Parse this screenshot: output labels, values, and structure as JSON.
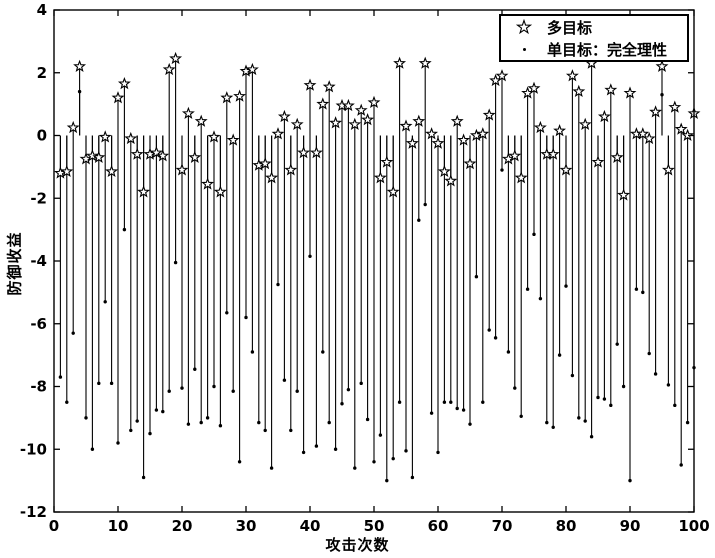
{
  "figure": {
    "xlabel": "攻击次数",
    "ylabel": "防御收益",
    "x_ticks": [
      0,
      10,
      20,
      30,
      40,
      50,
      60,
      70,
      80,
      90,
      100
    ],
    "y_ticks": [
      4,
      2,
      0,
      -2,
      -4,
      -6,
      -8,
      -10,
      -12
    ],
    "colors": {
      "stroke": "#000000",
      "background": "#ffffff"
    }
  },
  "chart_data": {
    "type": "stem",
    "title": "",
    "xlabel": "攻击次数",
    "ylabel": "防御收益",
    "xlim": [
      0,
      100
    ],
    "ylim": [
      -12,
      4
    ],
    "baseline": 0,
    "grid": false,
    "legend_position": "top-right",
    "x": [
      1,
      2,
      3,
      4,
      5,
      6,
      7,
      8,
      9,
      10,
      11,
      12,
      13,
      14,
      15,
      16,
      17,
      18,
      19,
      20,
      21,
      22,
      23,
      24,
      25,
      26,
      27,
      28,
      29,
      30,
      31,
      32,
      33,
      34,
      35,
      36,
      37,
      38,
      39,
      40,
      41,
      42,
      43,
      44,
      45,
      46,
      47,
      48,
      49,
      50,
      51,
      52,
      53,
      54,
      55,
      56,
      57,
      58,
      59,
      60,
      61,
      62,
      63,
      64,
      65,
      66,
      67,
      68,
      69,
      70,
      71,
      72,
      73,
      74,
      75,
      76,
      77,
      78,
      79,
      80,
      81,
      82,
      83,
      84,
      85,
      86,
      87,
      88,
      89,
      90,
      91,
      92,
      93,
      94,
      95,
      96,
      97,
      98,
      99,
      100
    ],
    "series": [
      {
        "name": "多目标",
        "marker": "pentagram",
        "values": [
          -1.2,
          -1.15,
          0.25,
          2.2,
          -0.75,
          -0.65,
          -0.7,
          -0.05,
          -1.15,
          1.2,
          1.65,
          -0.1,
          -0.6,
          -1.8,
          -0.6,
          -0.55,
          -0.65,
          2.1,
          2.45,
          -1.1,
          0.7,
          -0.7,
          0.45,
          -1.55,
          -0.05,
          -1.8,
          1.2,
          -0.15,
          1.25,
          2.05,
          2.1,
          -0.95,
          -0.9,
          -1.35,
          0.05,
          0.6,
          -1.1,
          0.35,
          -0.55,
          1.6,
          -0.55,
          1.0,
          1.55,
          0.4,
          0.95,
          0.95,
          0.35,
          0.8,
          0.5,
          1.05,
          -1.35,
          -0.85,
          -1.8,
          2.3,
          0.3,
          -0.25,
          0.45,
          2.3,
          0.05,
          -0.25,
          -1.15,
          -1.45,
          0.45,
          -0.15,
          -0.9,
          0.0,
          0.05,
          0.65,
          1.75,
          1.9,
          -0.75,
          -0.65,
          -1.35,
          1.35,
          1.5,
          0.25,
          -0.6,
          -0.6,
          0.15,
          -1.1,
          1.9,
          1.4,
          0.35,
          2.3,
          -0.85,
          0.6,
          1.45,
          -0.7,
          -1.9,
          1.35,
          0.05,
          0.05,
          -0.1,
          0.75,
          2.2,
          -1.1,
          0.9,
          0.2,
          0.0,
          0.7
        ]
      },
      {
        "name": "单目标：完全理性",
        "marker": "dot",
        "values": [
          -7.7,
          -8.5,
          -6.3,
          1.4,
          -9.0,
          -10.0,
          -7.9,
          -5.3,
          -7.9,
          -9.8,
          -3.0,
          -9.4,
          -9.1,
          -10.9,
          -9.5,
          -8.75,
          -8.8,
          -8.15,
          -4.05,
          -8.05,
          -9.2,
          -7.45,
          -9.15,
          -9.0,
          -8.0,
          -9.25,
          -5.65,
          -8.15,
          -10.4,
          -5.8,
          -6.9,
          -9.15,
          -9.4,
          -10.6,
          -4.75,
          -7.8,
          -9.4,
          -8.15,
          -10.1,
          -3.85,
          -9.9,
          -6.9,
          -9.15,
          -10.0,
          -8.55,
          -8.1,
          -10.6,
          -7.9,
          -9.05,
          -10.4,
          -9.55,
          -11.0,
          -10.3,
          -8.5,
          -10.05,
          -10.9,
          -2.7,
          -2.2,
          -8.85,
          -10.1,
          -8.5,
          -8.5,
          -8.7,
          -8.75,
          -9.2,
          -4.5,
          -8.5,
          -6.2,
          -6.45,
          -1.1,
          -6.9,
          -8.05,
          -8.95,
          -4.9,
          -3.15,
          -5.2,
          -9.15,
          -9.3,
          -7.0,
          -4.8,
          -7.65,
          -9.0,
          -9.1,
          -9.6,
          -8.35,
          -8.4,
          -8.6,
          -6.65,
          -8.0,
          -11.0,
          -4.9,
          -5.0,
          -6.95,
          -7.6,
          1.3,
          -7.95,
          -8.6,
          -10.5,
          -9.15,
          -7.4
        ]
      }
    ]
  }
}
